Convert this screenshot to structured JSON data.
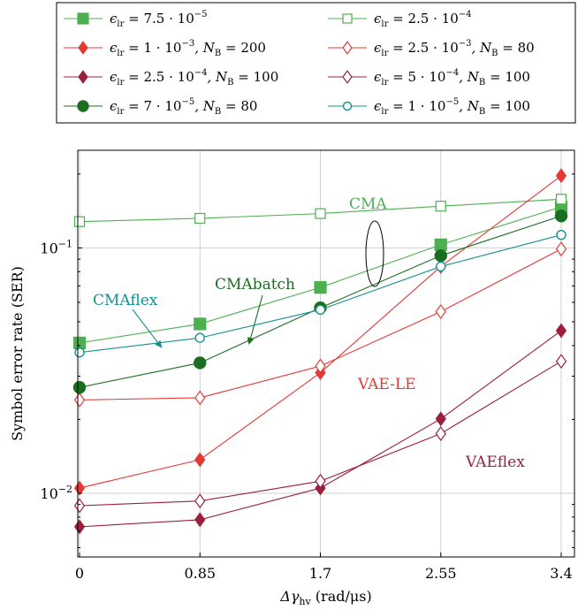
{
  "chart_data": {
    "type": "line",
    "title": "",
    "xlabel": "Δγhv (rad/μs)",
    "ylabel": "Symbol error rate (SER)",
    "x": [
      0,
      0.85,
      1.7,
      2.55,
      3.4
    ],
    "x_tick_labels": [
      "0",
      "0.85",
      "1.7",
      "2.55",
      "3.4"
    ],
    "y_scale": "log",
    "ylim": [
      0.0055,
      0.25
    ],
    "y_tick_labels": [
      {
        "value": 0.1,
        "label": "10",
        "exp": "−1"
      },
      {
        "value": 0.01,
        "label": "10",
        "exp": "−2"
      }
    ],
    "grid": true,
    "legend_position": "top",
    "series": [
      {
        "name": "ϵlr = 7.5 · 10−5",
        "legend": {
          "sym": "ϵ",
          "sub": "lr",
          "rest": " = 7.5 · 10",
          "sup": "−5",
          "tail": "",
          "nb_sub": "",
          "nb_rest": ""
        },
        "color": "#4caf50",
        "marker": "square",
        "filled": true,
        "values": [
          0.041,
          0.049,
          0.069,
          0.103,
          0.147
        ]
      },
      {
        "name": "ϵlr = 2.5 · 10−4",
        "legend": {
          "sym": "ϵ",
          "sub": "lr",
          "rest": " = 2.5 · 10",
          "sup": "−4",
          "tail": "",
          "nb_sub": "",
          "nb_rest": ""
        },
        "color": "#4caf50",
        "marker": "square",
        "filled": false,
        "values": [
          0.128,
          0.132,
          0.138,
          0.148,
          0.158
        ]
      },
      {
        "name": "ϵlr = 1 · 10−3, NB = 200",
        "legend": {
          "sym": "ϵ",
          "sub": "lr",
          "rest": " = 1 · 10",
          "sup": "−3",
          "tail": ", N",
          "nb_sub": "B",
          "nb_rest": " = 200"
        },
        "color": "#e53935",
        "marker": "diamond",
        "filled": true,
        "values": [
          0.0105,
          0.0137,
          0.031,
          0.084,
          0.197
        ]
      },
      {
        "name": "ϵlr = 2.5 · 10−3, NB = 80",
        "legend": {
          "sym": "ϵ",
          "sub": "lr",
          "rest": " = 2.5 · 10",
          "sup": "−3",
          "tail": ", N",
          "nb_sub": "B",
          "nb_rest": " = 80"
        },
        "color": "#e53935",
        "marker": "diamond",
        "filled": false,
        "values": [
          0.024,
          0.0245,
          0.033,
          0.055,
          0.099
        ]
      },
      {
        "name": "ϵlr = 2.5 · 10−4, NB = 100",
        "legend": {
          "sym": "ϵ",
          "sub": "lr",
          "rest": " = 2.5 · 10",
          "sup": "−4",
          "tail": ", N",
          "nb_sub": "B",
          "nb_rest": " = 100"
        },
        "color": "#9c1f3c",
        "marker": "diamond",
        "filled": true,
        "values": [
          0.0073,
          0.0078,
          0.0105,
          0.0201,
          0.046
        ]
      },
      {
        "name": "ϵlr = 5 · 10−4, NB = 100",
        "legend": {
          "sym": "ϵ",
          "sub": "lr",
          "rest": " = 5 · 10",
          "sup": "−4",
          "tail": ", N",
          "nb_sub": "B",
          "nb_rest": " = 100"
        },
        "color": "#9c1f3c",
        "marker": "diamond",
        "filled": false,
        "values": [
          0.0089,
          0.0093,
          0.0112,
          0.0175,
          0.0345
        ]
      },
      {
        "name": "ϵlr = 7 · 10−5, NB = 80",
        "legend": {
          "sym": "ϵ",
          "sub": "lr",
          "rest": " = 7 · 10",
          "sup": "−5",
          "tail": ", N",
          "nb_sub": "B",
          "nb_rest": " = 80"
        },
        "color": "#1b6e20",
        "marker": "circle",
        "filled": true,
        "values": [
          0.027,
          0.034,
          0.057,
          0.093,
          0.135
        ]
      },
      {
        "name": "ϵlr = 1 · 10−5, NB = 100",
        "legend": {
          "sym": "ϵ",
          "sub": "lr",
          "rest": " = 1 · 10",
          "sup": "−5",
          "tail": ", N",
          "nb_sub": "B",
          "nb_rest": " = 100"
        },
        "color": "#13918f",
        "marker": "circle",
        "filled": false,
        "values": [
          0.0375,
          0.043,
          0.056,
          0.084,
          0.113
        ]
      }
    ],
    "annotations": [
      {
        "text": "CMA",
        "color": "#4caf50"
      },
      {
        "text": "CMAbatch",
        "color": "#1b6e20"
      },
      {
        "text": "CMAflex",
        "color": "#13918f"
      },
      {
        "text": "VAE-LE",
        "color": "#e53935"
      },
      {
        "text": "VAEflex",
        "color": "#9c1f3c"
      }
    ]
  }
}
